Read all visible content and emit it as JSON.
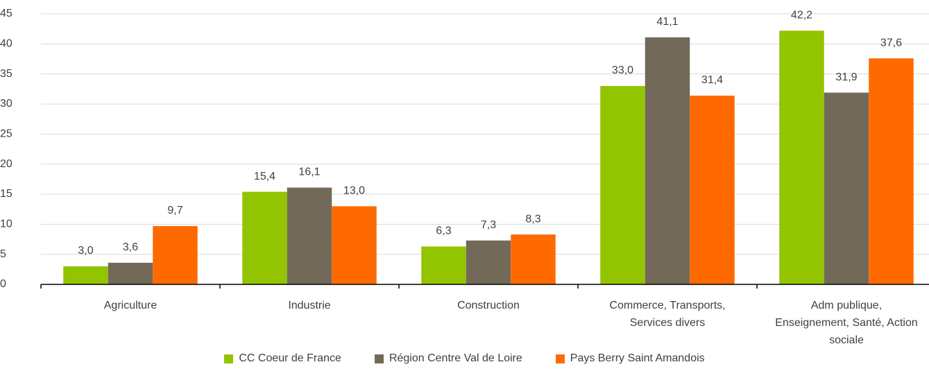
{
  "chart_data": {
    "type": "bar",
    "categories": [
      "Agriculture",
      "Industrie",
      "Construction",
      "Commerce, Transports,\nServices divers",
      "Adm publique,\nEnseignement, Santé, Action\nsociale"
    ],
    "series": [
      {
        "name": "CC Coeur de France",
        "color": "#92c400",
        "values": [
          3.0,
          15.4,
          6.3,
          33.0,
          42.2
        ],
        "value_labels": [
          "3,0",
          "15,4",
          "6,3",
          "33,0",
          "42,2"
        ]
      },
      {
        "name": "Région Centre Val de Loire",
        "color": "#736959",
        "values": [
          3.6,
          16.1,
          7.3,
          41.1,
          31.9
        ],
        "value_labels": [
          "3,6",
          "16,1",
          "7,3",
          "41,1",
          "31,9"
        ]
      },
      {
        "name": "Pays Berry Saint Amandois",
        "color": "#ff6a00",
        "values": [
          9.7,
          13.0,
          8.3,
          31.4,
          37.6
        ],
        "value_labels": [
          "9,7",
          "13,0",
          "8,3",
          "31,4",
          "37,6"
        ]
      }
    ],
    "ylim": [
      0,
      45
    ],
    "yticks": [
      0,
      5,
      10,
      15,
      20,
      25,
      30,
      35,
      40,
      45
    ],
    "grid": true,
    "legend": "bottom"
  }
}
